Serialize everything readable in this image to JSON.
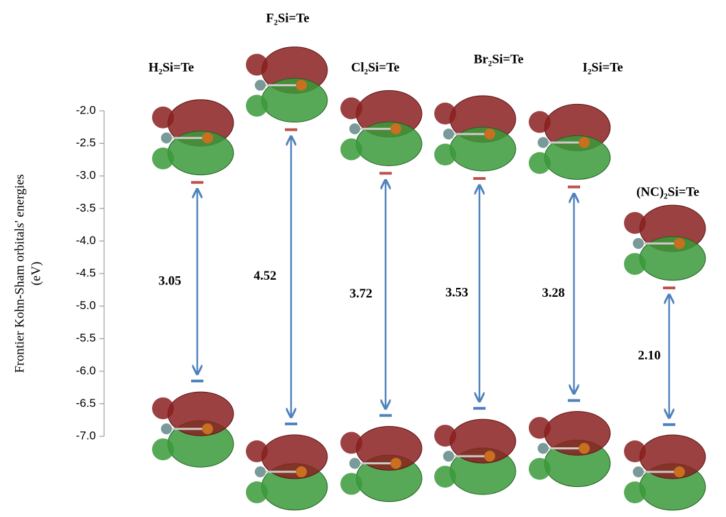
{
  "chart_data": {
    "type": "energy-levels",
    "y_label": [
      "Frontier Kohn-Sham orbitals' energies",
      "(eV)"
    ],
    "categories": [
      "H₂Si=Te",
      "F₂Si=Te",
      "Cl₂Si=Te",
      "Br₂Si=Te",
      "I₂Si=Te",
      "(NC)₂Si=Te"
    ],
    "lumo": {
      "color": "#c0504d",
      "values": [
        -3.1,
        -2.29,
        -2.96,
        -3.04,
        -3.17,
        -4.72
      ]
    },
    "homo": {
      "color": "#4f81bd",
      "values": [
        -6.15,
        -6.81,
        -6.68,
        -6.57,
        -6.45,
        -6.82
      ]
    },
    "gaps": {
      "color": "#4f81bd",
      "values": [
        3.05,
        4.52,
        3.72,
        3.53,
        3.28,
        2.1
      ],
      "value_labels": [
        "3.05",
        "4.52",
        "3.72",
        "3.53",
        "3.28",
        "2.10"
      ]
    },
    "ylim": [
      -7.0,
      -2.0
    ],
    "yticks": [
      {
        "value": -2,
        "label": "-2.0"
      },
      -2.5,
      {
        "value": -3,
        "label": "-3.0"
      },
      -3.5,
      {
        "value": -4,
        "label": "-4.0"
      },
      -4.5,
      {
        "value": -5,
        "label": "-5.0"
      },
      -5.5,
      {
        "value": -6,
        "label": "-6.0"
      },
      -6.5,
      {
        "value": -7,
        "label": "-7.0"
      }
    ]
  }
}
